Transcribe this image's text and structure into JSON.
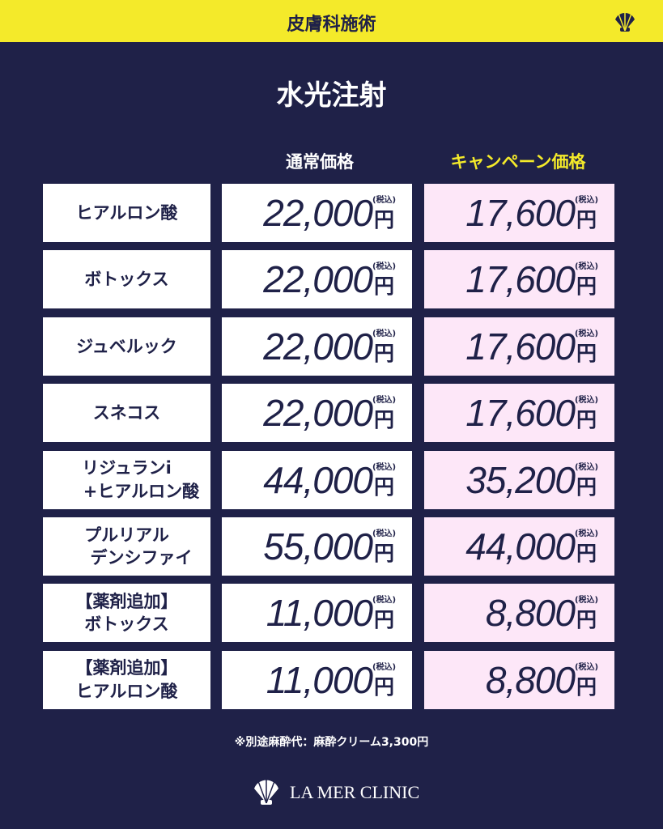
{
  "header": {
    "title": "皮膚科施術"
  },
  "title": "水光注射",
  "columns": {
    "regular": "通常価格",
    "campaign": "キャンペーン価格"
  },
  "unit": "円",
  "tax_note": "(税込)",
  "rows": [
    {
      "name": [
        "ヒアルロン酸"
      ],
      "regular": "22,000",
      "campaign": "17,600"
    },
    {
      "name": [
        "ボトックス"
      ],
      "regular": "22,000",
      "campaign": "17,600"
    },
    {
      "name": [
        "ジュベルック"
      ],
      "regular": "22,000",
      "campaign": "17,600"
    },
    {
      "name": [
        "スネコス"
      ],
      "regular": "22,000",
      "campaign": "17,600"
    },
    {
      "name": [
        "リジュランi",
        "+ヒアルロン酸"
      ],
      "regular": "44,000",
      "campaign": "35,200"
    },
    {
      "name": [
        "プルリアル",
        "デンシファイ"
      ],
      "regular": "55,000",
      "campaign": "44,000"
    },
    {
      "name": [
        "【薬剤追加】",
        "ボトックス"
      ],
      "regular": "11,000",
      "campaign": "8,800"
    },
    {
      "name": [
        "【薬剤追加】",
        "ヒアルロン酸"
      ],
      "regular": "11,000",
      "campaign": "8,800"
    }
  ],
  "note": "※別途麻酔代：麻酔クリーム3,300円",
  "footer": {
    "brand": "LA MER CLINIC"
  }
}
